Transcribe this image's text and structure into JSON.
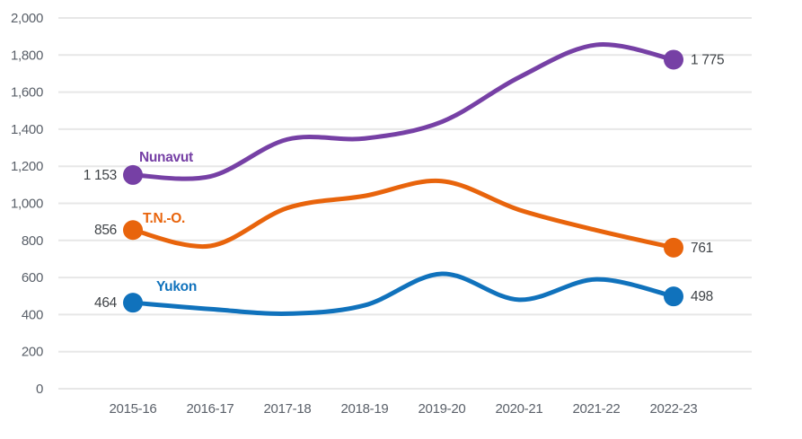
{
  "chart_data": {
    "type": "line",
    "title": "",
    "xlabel": "",
    "ylabel": "",
    "grid": true,
    "legend_position": "inline-labels-near-first-point",
    "categories": [
      "2015-16",
      "2016-17",
      "2017-18",
      "2018-19",
      "2019-20",
      "2020-21",
      "2021-22",
      "2022-23"
    ],
    "y_axis": {
      "min": 0,
      "max": 2000,
      "step": 200,
      "tick_labels": [
        "0",
        "200",
        "400",
        "600",
        "800",
        "1,000",
        "1,200",
        "1,400",
        "1,600",
        "1,800",
        "2,000"
      ]
    },
    "series": [
      {
        "name": "Nunavut",
        "color": "#7640A5",
        "values": [
          1153,
          1145,
          1345,
          1350,
          1440,
          1680,
          1855,
          1775
        ],
        "start_value_label": "1 153",
        "end_value_label": "1 775",
        "name_label_pos": {
          "x": 155,
          "y": 180
        }
      },
      {
        "name": "T.N.-O.",
        "color": "#E8640C",
        "values": [
          856,
          770,
          975,
          1040,
          1120,
          965,
          855,
          761
        ],
        "start_value_label": "856",
        "end_value_label": "761",
        "name_label_pos": {
          "x": 159,
          "y": 248
        }
      },
      {
        "name": "Yukon",
        "color": "#1072BC",
        "values": [
          464,
          430,
          405,
          450,
          620,
          480,
          590,
          498
        ],
        "start_value_label": "464",
        "end_value_label": "498",
        "name_label_pos": {
          "x": 174,
          "y": 324
        }
      }
    ],
    "styles": {
      "gridline_color": "#E7E7E7",
      "tick_label_color": "#5A6069",
      "value_label_color": "#3F4347",
      "background": "#ffffff"
    }
  }
}
